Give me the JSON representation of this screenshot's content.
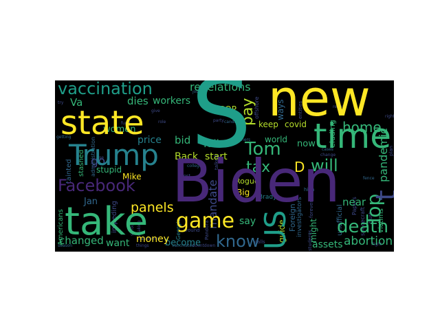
{
  "palette": {
    "yellow": "#fde725",
    "lime": "#b5de2b",
    "green": "#35b779",
    "teal": "#1f9e89",
    "cyan": "#26828e",
    "blue": "#31688e",
    "indigo": "#3e4a89",
    "purple": "#482878",
    "dark": "#440154"
  },
  "words": {
    "biden": "Biden",
    "s": "S",
    "new": "new",
    "state": "state",
    "take": "take",
    "trump": "Trump",
    "time": "time",
    "us": "US",
    "game": "game",
    "facebook": "Facebook",
    "vaccination": "vaccination",
    "tom": "Tom",
    "top": "Top",
    "death": "death",
    "know": "know",
    "pay": "pay",
    "will": "will",
    "t": "t",
    "tax": "tax",
    "home": "home",
    "d": "D",
    "panels": "panels",
    "women": "women",
    "revelations": "revelations",
    "workers": "workers",
    "dies": "dies",
    "price": "price",
    "bid": "bid",
    "va": "Va",
    "go": "go",
    "jan": "Jan",
    "mike": "Mike",
    "back": "Back",
    "start": "start",
    "fall": "fall",
    "world": "world",
    "keep": "keep",
    "covid": "covid",
    "now": "now",
    "pandemic": "pandemic",
    "changed": "changed",
    "want": "want",
    "money": "money",
    "become": "become",
    "say": "say",
    "guide": "guide",
    "might": "might",
    "near": "near",
    "abortion": "abortion",
    "assets": "assets",
    "mandate": "mandate",
    "big": "Big",
    "rogue": "Rogue",
    "stupid": "stupid",
    "gop": "GOP",
    "americans": "Americans",
    "stashed": "stashed",
    "administration": "administration",
    "impeding": "impeding",
    "georgia": "Georgia",
    "foreign": "Foreign",
    "investigators": "investigators",
    "eluding": "eluding",
    "unofficial": "unofficial",
    "victims": "victims",
    "offshore": "offshore",
    "talked": "talked",
    "ways": "ways",
    "high": "high",
    "papers": "Papers",
    "brady": "Brady",
    "spacecraft": "spacecraft",
    "tainted": "tainted",
    "students": "students",
    "around": "around",
    "calls": "calls",
    "pandora": "Pandora",
    "school": "school",
    "making": "making",
    "things": "things",
    "classroom": "classroom",
    "vaccinated": "vaccinated",
    "countdown": "countdown",
    "teachers": "teachers",
    "return": "return",
    "cases": "cases",
    "change": "change",
    "party": "party",
    "post": "post",
    "role": "role",
    "give": "give",
    "try": "try",
    "getting": "getting",
    "rise": "rise",
    "season": "season",
    "forever": "forever",
    "fence": "fence",
    "fund": "fund",
    "trust": "trust",
    "right": "right",
    "jobs": "jobs",
    "entities": "entities",
    "candidate": "candidate",
    "college": "college",
    "flight": "flight",
    "plan": "plan"
  }
}
